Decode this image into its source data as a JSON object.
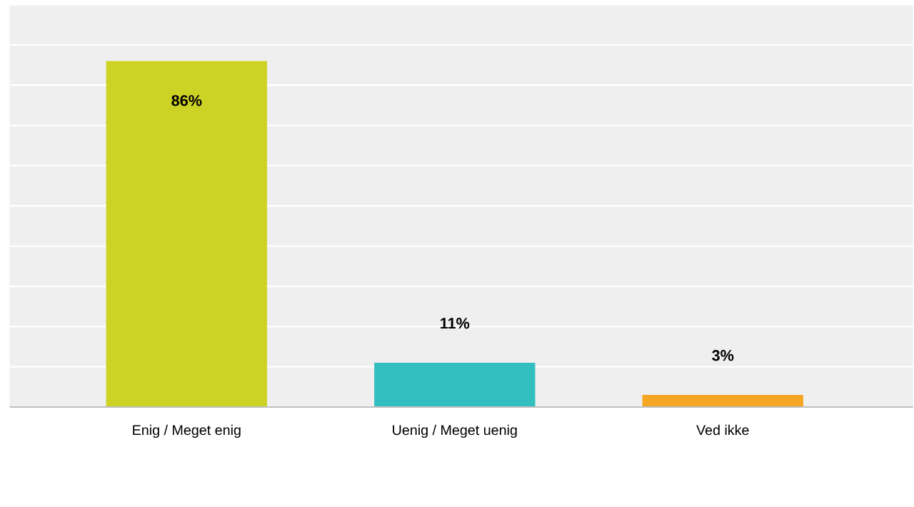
{
  "chart_data": {
    "type": "bar",
    "categories": [
      "Enig / Meget enig",
      "Uenig / Meget uenig",
      "Ved ikke"
    ],
    "values": [
      86,
      11,
      3
    ],
    "colors": [
      "#cdd324",
      "#33bfbf",
      "#f5a623"
    ],
    "value_labels": [
      "86%",
      "11%",
      "3%"
    ],
    "ylim": [
      0,
      100
    ],
    "yticks": [
      {
        "value": 0,
        "label": null
      },
      {
        "value": 10,
        "label": null
      },
      {
        "value": 20,
        "label": null
      },
      {
        "value": 30,
        "label": null
      },
      {
        "value": 40,
        "label": null
      },
      {
        "value": 50,
        "label": null
      },
      {
        "value": 60,
        "label": null
      },
      {
        "value": 70,
        "label": null
      },
      {
        "value": 80,
        "label": null
      },
      {
        "value": 90,
        "label": null
      },
      {
        "value": 100,
        "label": null
      }
    ],
    "tick_labels": "x",
    "grid": "y"
  }
}
